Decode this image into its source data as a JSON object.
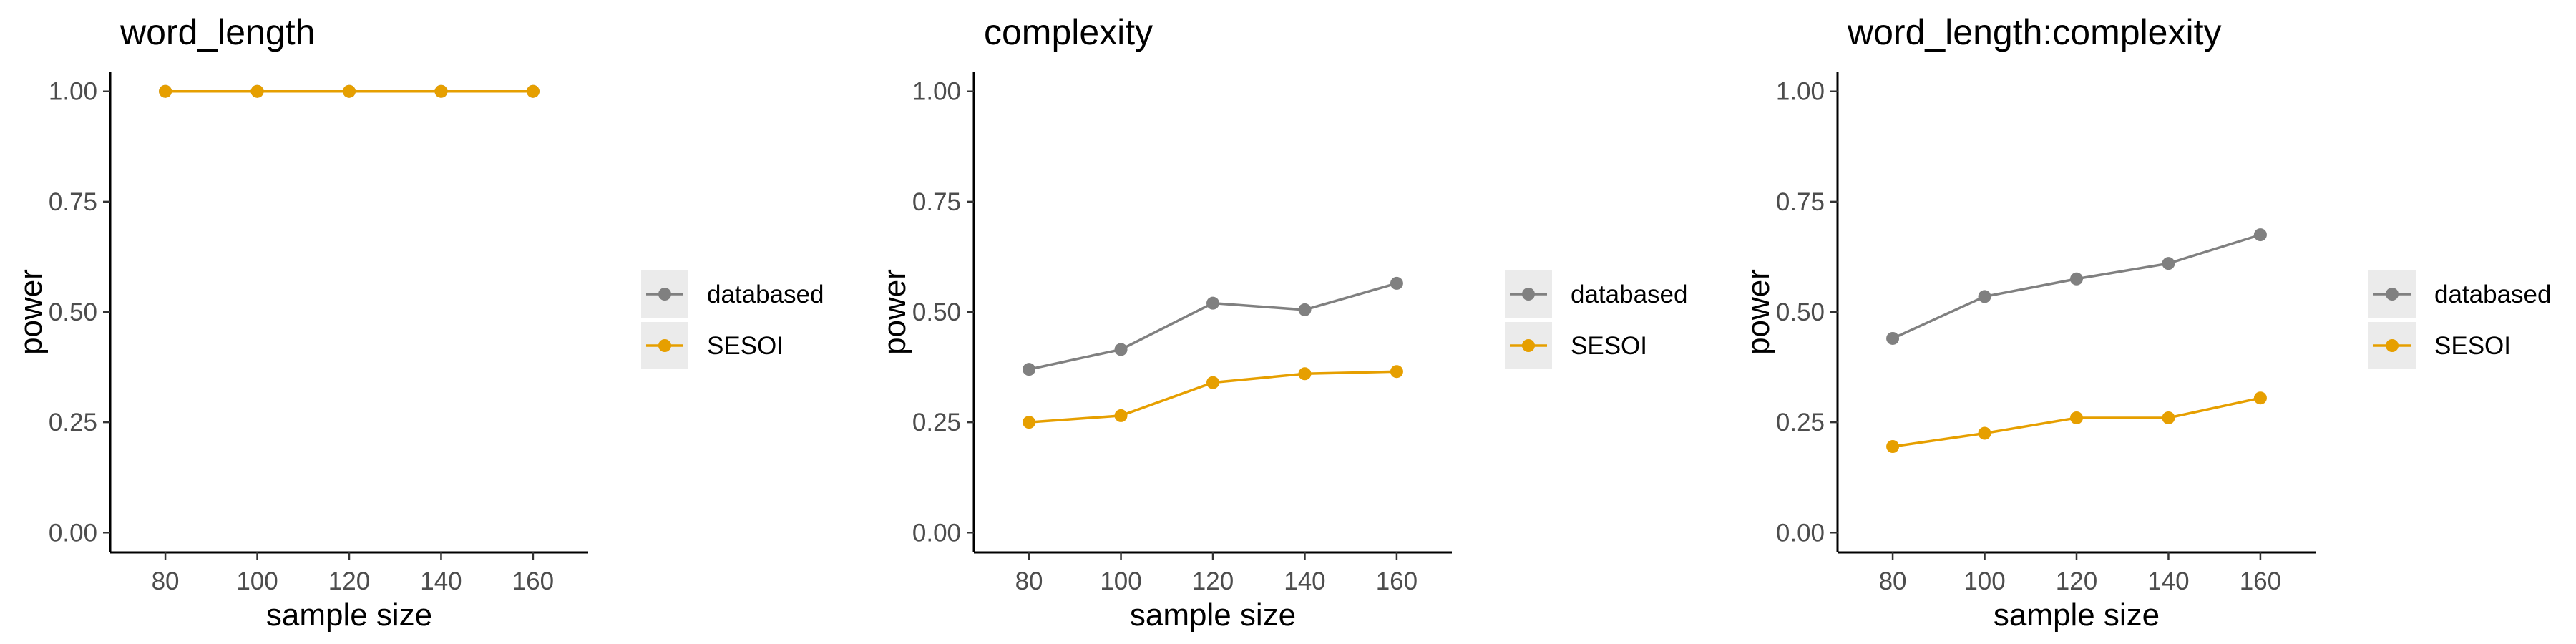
{
  "chart_data": [
    {
      "type": "line",
      "title": "word_length",
      "xlabel": "sample size",
      "ylabel": "power",
      "x": [
        80,
        100,
        120,
        140,
        160
      ],
      "x_ticks": [
        "80",
        "100",
        "120",
        "140",
        "160"
      ],
      "xlim": [
        68,
        172
      ],
      "ylim": [
        -0.045,
        1.045
      ],
      "y_ticks": [
        "0.00",
        "0.25",
        "0.50",
        "0.75",
        "1.00"
      ],
      "y_tick_values": [
        0,
        0.25,
        0.5,
        0.75,
        1.0
      ],
      "grid": false,
      "series": [
        {
          "name": "databased",
          "color": "#808080",
          "values": [
            1.0,
            1.0,
            1.0,
            1.0,
            1.0
          ]
        },
        {
          "name": "SESOI",
          "color": "#E69F00",
          "values": [
            1.0,
            1.0,
            1.0,
            1.0,
            1.0
          ]
        }
      ],
      "legend": {
        "position": "right",
        "entries": [
          "databased",
          "SESOI"
        ]
      }
    },
    {
      "type": "line",
      "title": "complexity",
      "xlabel": "sample size",
      "ylabel": "power",
      "x": [
        80,
        100,
        120,
        140,
        160
      ],
      "x_ticks": [
        "80",
        "100",
        "120",
        "140",
        "160"
      ],
      "xlim": [
        68,
        172
      ],
      "ylim": [
        -0.045,
        1.045
      ],
      "y_ticks": [
        "0.00",
        "0.25",
        "0.50",
        "0.75",
        "1.00"
      ],
      "y_tick_values": [
        0,
        0.25,
        0.5,
        0.75,
        1.0
      ],
      "grid": false,
      "series": [
        {
          "name": "databased",
          "color": "#808080",
          "values": [
            0.37,
            0.415,
            0.52,
            0.505,
            0.565
          ]
        },
        {
          "name": "SESOI",
          "color": "#E69F00",
          "values": [
            0.25,
            0.265,
            0.34,
            0.36,
            0.365
          ]
        }
      ],
      "legend": {
        "position": "right",
        "entries": [
          "databased",
          "SESOI"
        ]
      }
    },
    {
      "type": "line",
      "title": "word_length:complexity",
      "xlabel": "sample size",
      "ylabel": "power",
      "x": [
        80,
        100,
        120,
        140,
        160
      ],
      "x_ticks": [
        "80",
        "100",
        "120",
        "140",
        "160"
      ],
      "xlim": [
        68,
        172
      ],
      "ylim": [
        -0.045,
        1.045
      ],
      "y_ticks": [
        "0.00",
        "0.25",
        "0.50",
        "0.75",
        "1.00"
      ],
      "y_tick_values": [
        0,
        0.25,
        0.5,
        0.75,
        1.0
      ],
      "grid": false,
      "series": [
        {
          "name": "databased",
          "color": "#808080",
          "values": [
            0.44,
            0.535,
            0.575,
            0.61,
            0.675
          ]
        },
        {
          "name": "SESOI",
          "color": "#E69F00",
          "values": [
            0.195,
            0.225,
            0.26,
            0.26,
            0.305
          ]
        }
      ],
      "legend": {
        "position": "right",
        "entries": [
          "databased",
          "SESOI"
        ]
      }
    }
  ]
}
